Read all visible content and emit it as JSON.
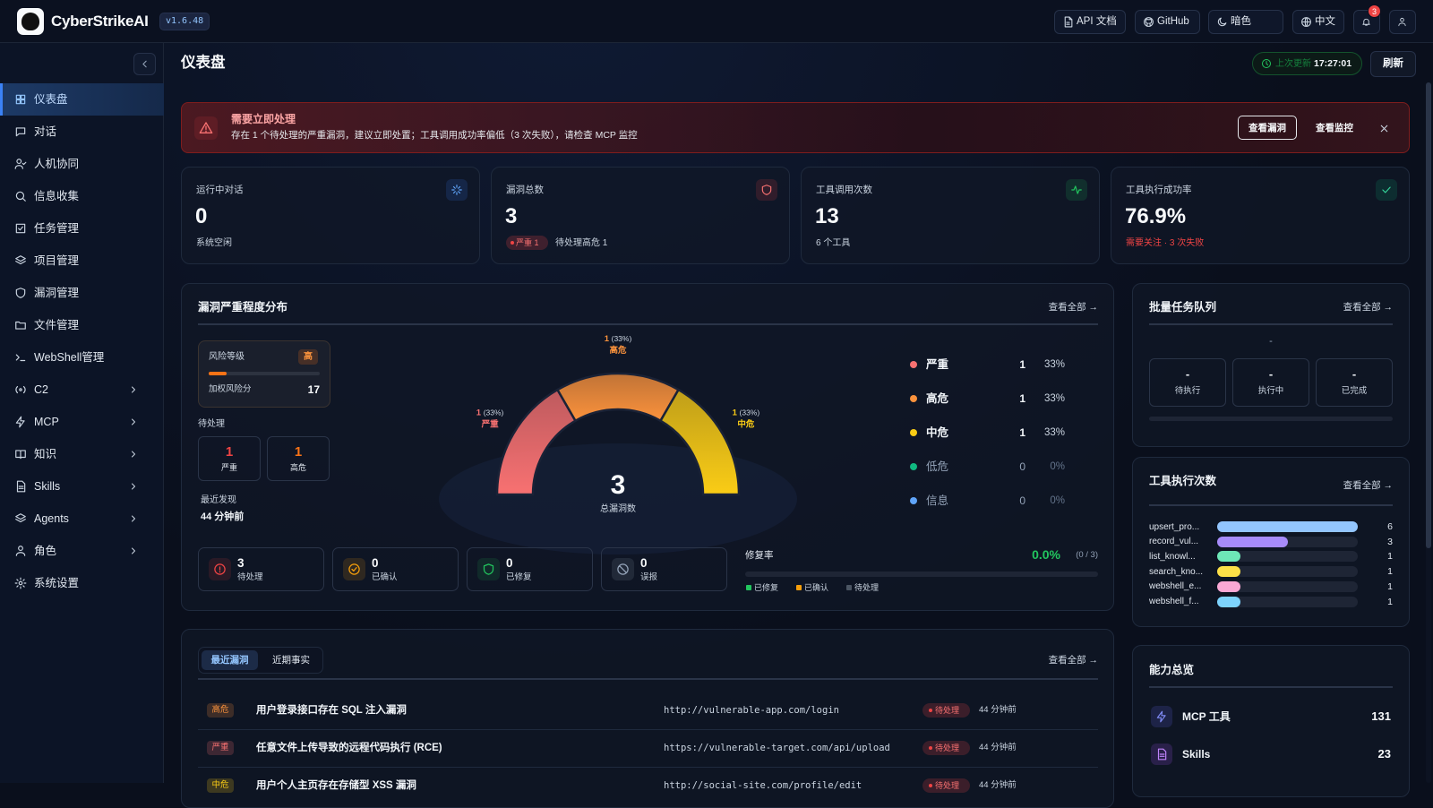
{
  "header": {
    "brand": "CyberStrikeAI",
    "version": "v1.6.48",
    "buttons": [
      "API 文档",
      "GitHub",
      "暗色",
      "中文"
    ],
    "notification_count": 3
  },
  "sidebar": {
    "active_item": 0,
    "items": [
      {
        "label": "仪表盘",
        "expandable": false
      },
      {
        "label": "对话",
        "expandable": false
      },
      {
        "label": "人机协同",
        "expandable": false
      },
      {
        "label": "信息收集",
        "expandable": false
      },
      {
        "label": "任务管理",
        "expandable": false
      },
      {
        "label": "项目管理",
        "expandable": false
      },
      {
        "label": "漏洞管理",
        "expandable": false
      },
      {
        "label": "文件管理",
        "expandable": false
      },
      {
        "label": "WebShell管理",
        "expandable": false
      },
      {
        "label": "C2",
        "expandable": true
      },
      {
        "label": "MCP",
        "expandable": true
      },
      {
        "label": "知识",
        "expandable": true
      },
      {
        "label": "Skills",
        "expandable": true
      },
      {
        "label": "Agents",
        "expandable": true
      },
      {
        "label": "角色",
        "expandable": true
      },
      {
        "label": "系统设置",
        "expandable": false
      }
    ]
  },
  "page": {
    "title": "仪表盘",
    "last_update_label": "上次更新",
    "last_update_time": "17:27:01",
    "refresh": "刷新"
  },
  "alert": {
    "title": "需要立即处理",
    "message": "存在 1 个待处理的严重漏洞，建议立即处置；工具调用成功率偏低（3 次失败），请检查 MCP 监控",
    "actions": [
      "查看漏洞",
      "查看监控"
    ]
  },
  "stats": [
    {
      "label": "运行中对话",
      "value": 0,
      "sub": "系统空闲"
    },
    {
      "label": "漏洞总数",
      "value": 3,
      "badge": "严重 1",
      "sub": "待处理高危 1"
    },
    {
      "label": "工具调用次数",
      "value": 13,
      "sub": "6 个工具"
    },
    {
      "label": "工具执行成功率",
      "value": "76.9%",
      "sub": "需要关注 · 3 次失败",
      "warning": true
    }
  ],
  "severity": {
    "title": "漏洞严重程度分布",
    "view_all": "查看全部 →",
    "risk": {
      "label": "风险等级",
      "level": "高",
      "score_label": "加权风险分",
      "score": 17
    },
    "pending": {
      "label": "待处理",
      "items": [
        {
          "count": 1,
          "label": "严重"
        },
        {
          "count": 1,
          "label": "高危"
        }
      ]
    },
    "recent": {
      "label": "最近发现",
      "value": "44 分钟前"
    },
    "gauge": {
      "total": 3,
      "total_label": "总漏洞数"
    },
    "levels": [
      {
        "name": "严重",
        "count": 1,
        "percent": "33%",
        "gauge_percent": "(33%)",
        "color": "#f87171"
      },
      {
        "name": "高危",
        "count": 1,
        "percent": "33%",
        "gauge_percent": "(33%)",
        "color": "#fb923c"
      },
      {
        "name": "中危",
        "count": 1,
        "percent": "33%",
        "gauge_percent": "(33%)",
        "color": "#facc15"
      },
      {
        "name": "低危",
        "count": 0,
        "percent": "0%",
        "color": "#10b981"
      },
      {
        "name": "信息",
        "count": 0,
        "percent": "0%",
        "color": "#60a5fa"
      }
    ],
    "status": [
      {
        "count": 3,
        "label": "待处理"
      },
      {
        "count": 0,
        "label": "已确认"
      },
      {
        "count": 0,
        "label": "已修复"
      },
      {
        "count": 0,
        "label": "误报"
      }
    ],
    "fix_rate": {
      "label": "修复率",
      "value": "0.0%",
      "detail": "(0 / 3)",
      "legend": [
        {
          "name": "已修复",
          "color": "#22c55e"
        },
        {
          "name": "已确认",
          "color": "#f59e0b"
        },
        {
          "name": "待处理",
          "color": "#4b5563"
        }
      ]
    }
  },
  "batch": {
    "title": "批量任务队列",
    "view_all": "查看全部 →",
    "summary": "-",
    "items": [
      {
        "value": "-",
        "label": "待执行"
      },
      {
        "value": "-",
        "label": "执行中"
      },
      {
        "value": "-",
        "label": "已完成"
      }
    ]
  },
  "tools": {
    "title": "工具执行次数",
    "view_all": "查看全部 →",
    "items": [
      {
        "name": "upsert_pro...",
        "count": 6,
        "color": "#93c5fd"
      },
      {
        "name": "record_vul...",
        "count": 3,
        "color": "#a78bfa"
      },
      {
        "name": "list_knowl...",
        "count": 1,
        "color": "#6ee7b7"
      },
      {
        "name": "search_kno...",
        "count": 1,
        "color": "#fde047"
      },
      {
        "name": "webshell_e...",
        "count": 1,
        "color": "#f9a8d4"
      },
      {
        "name": "webshell_f...",
        "count": 1,
        "color": "#7dd3fc"
      }
    ]
  },
  "capabilities": {
    "title": "能力总览",
    "items": [
      {
        "name": "MCP 工具",
        "count": 131
      },
      {
        "name": "Skills",
        "count": 23
      }
    ]
  },
  "recent": {
    "tabs": [
      "最近漏洞",
      "近期事实"
    ],
    "view_all": "查看全部 →",
    "rows": [
      {
        "severity": "高危",
        "title": "用户登录接口存在 SQL 注入漏洞",
        "url": "http://vulnerable-app.com/login",
        "status": "待处理",
        "time": "44 分钟前"
      },
      {
        "severity": "严重",
        "title": "任意文件上传导致的远程代码执行 (RCE)",
        "url": "https://vulnerable-target.com/api/upload",
        "status": "待处理",
        "time": "44 分钟前"
      },
      {
        "severity": "中危",
        "title": "用户个人主页存在存储型 XSS 漏洞",
        "url": "http://social-site.com/profile/edit",
        "status": "待处理",
        "time": "44 分钟前"
      }
    ]
  }
}
